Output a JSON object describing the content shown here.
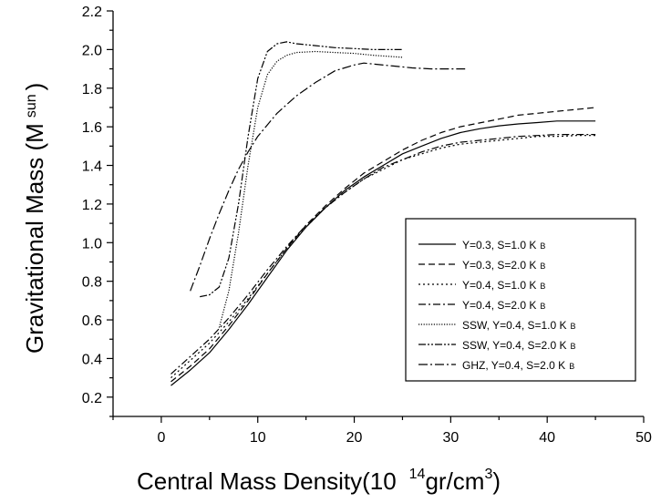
{
  "chart_data": {
    "type": "line",
    "xlabel": {
      "prefix": "Central Mass Density(10",
      "exponent": "14",
      "unit": "gr/cm",
      "unit_exp": "3",
      "suffix": ")"
    },
    "ylabel": {
      "prefix": "Gravitational Mass (M",
      "subscript": "sun",
      "suffix": ")"
    },
    "xlim": [
      -5,
      50
    ],
    "ylim": [
      0.1,
      2.2
    ],
    "xticks": [
      0,
      10,
      20,
      30,
      40,
      50
    ],
    "yticks": [
      0.2,
      0.4,
      0.6,
      0.8,
      1.0,
      1.2,
      1.4,
      1.6,
      1.8,
      2.0,
      2.2
    ],
    "ytick_labels": [
      "0.2",
      "0.4",
      "0.6",
      "0.8",
      "1.0",
      "1.2",
      "1.4",
      "1.6",
      "1.8",
      "2.0",
      "2.2"
    ],
    "legend_position": "lower-right",
    "series": [
      {
        "name": "Y=0.3, S=1.0 K",
        "sub": "B",
        "dash": "solid",
        "x": [
          1,
          3,
          5,
          7,
          9,
          11,
          13,
          15,
          17,
          19,
          21,
          23,
          25,
          27,
          29,
          31,
          33,
          35,
          37,
          39,
          41,
          43,
          45
        ],
        "y": [
          0.26,
          0.34,
          0.43,
          0.55,
          0.68,
          0.82,
          0.96,
          1.08,
          1.18,
          1.27,
          1.34,
          1.4,
          1.46,
          1.5,
          1.54,
          1.57,
          1.59,
          1.605,
          1.615,
          1.622,
          1.63,
          1.63,
          1.63
        ]
      },
      {
        "name": "Y=0.3, S=2.0 K",
        "sub": "B",
        "dash": "dashed",
        "x": [
          1,
          3,
          5,
          7,
          9,
          11,
          13,
          15,
          17,
          19,
          21,
          23,
          25,
          27,
          29,
          31,
          33,
          35,
          37,
          39,
          41,
          43,
          45
        ],
        "y": [
          0.28,
          0.36,
          0.45,
          0.57,
          0.7,
          0.84,
          0.97,
          1.09,
          1.19,
          1.28,
          1.36,
          1.42,
          1.48,
          1.53,
          1.57,
          1.6,
          1.62,
          1.64,
          1.66,
          1.67,
          1.68,
          1.69,
          1.7
        ]
      },
      {
        "name": "Y=0.4, S=1.0 K",
        "sub": "B",
        "dash": "dotted",
        "x": [
          1,
          3,
          5,
          7,
          9,
          11,
          13,
          15,
          17,
          19,
          21,
          23,
          25,
          27,
          29,
          31,
          33,
          35,
          37,
          39,
          41,
          43,
          45
        ],
        "y": [
          0.3,
          0.39,
          0.48,
          0.59,
          0.71,
          0.84,
          0.97,
          1.08,
          1.18,
          1.26,
          1.33,
          1.38,
          1.43,
          1.46,
          1.49,
          1.51,
          1.52,
          1.53,
          1.54,
          1.55,
          1.55,
          1.555,
          1.555
        ]
      },
      {
        "name": "Y=0.4, S=2.0 K",
        "sub": "B",
        "dash": "dashdot",
        "x": [
          1,
          3,
          5,
          7,
          9,
          11,
          13,
          15,
          17,
          19,
          21,
          23,
          25,
          27,
          29,
          31,
          33,
          35,
          37,
          39,
          41,
          43,
          45
        ],
        "y": [
          0.32,
          0.41,
          0.5,
          0.61,
          0.73,
          0.86,
          0.98,
          1.09,
          1.18,
          1.26,
          1.33,
          1.39,
          1.43,
          1.47,
          1.5,
          1.52,
          1.53,
          1.54,
          1.55,
          1.555,
          1.56,
          1.56,
          1.56
        ]
      },
      {
        "name": "SSW, Y=0.4, S=1.0 K",
        "sub": "B",
        "dash": "densedot",
        "x": [
          6,
          7,
          8,
          9,
          10,
          11,
          12,
          13,
          14,
          16,
          18,
          20,
          22,
          25
        ],
        "y": [
          0.56,
          0.75,
          1.05,
          1.4,
          1.7,
          1.87,
          1.94,
          1.97,
          1.985,
          1.99,
          1.985,
          1.98,
          1.97,
          1.96
        ]
      },
      {
        "name": "SSW, Y=0.4, S=2.0 K",
        "sub": "B",
        "dash": "dashdotdot",
        "x": [
          4,
          5,
          6,
          7,
          8,
          9,
          10,
          11,
          12,
          13,
          14,
          16,
          18,
          20,
          22,
          25
        ],
        "y": [
          0.72,
          0.73,
          0.77,
          0.92,
          1.2,
          1.55,
          1.85,
          1.99,
          2.03,
          2.04,
          2.03,
          2.02,
          2.01,
          2.005,
          2.0,
          2.0
        ]
      },
      {
        "name": "GHZ, Y=0.4, S=2.0 K",
        "sub": "B",
        "dash": "longdashdot",
        "x": [
          3,
          4,
          5,
          6,
          7,
          8,
          9,
          10,
          11,
          12,
          14,
          16,
          18,
          20,
          21,
          22,
          24,
          26,
          28,
          30,
          31.5
        ],
        "y": [
          0.75,
          0.88,
          1.02,
          1.15,
          1.27,
          1.38,
          1.47,
          1.55,
          1.61,
          1.67,
          1.76,
          1.83,
          1.89,
          1.92,
          1.93,
          1.925,
          1.915,
          1.905,
          1.9,
          1.9,
          1.9
        ]
      }
    ]
  }
}
